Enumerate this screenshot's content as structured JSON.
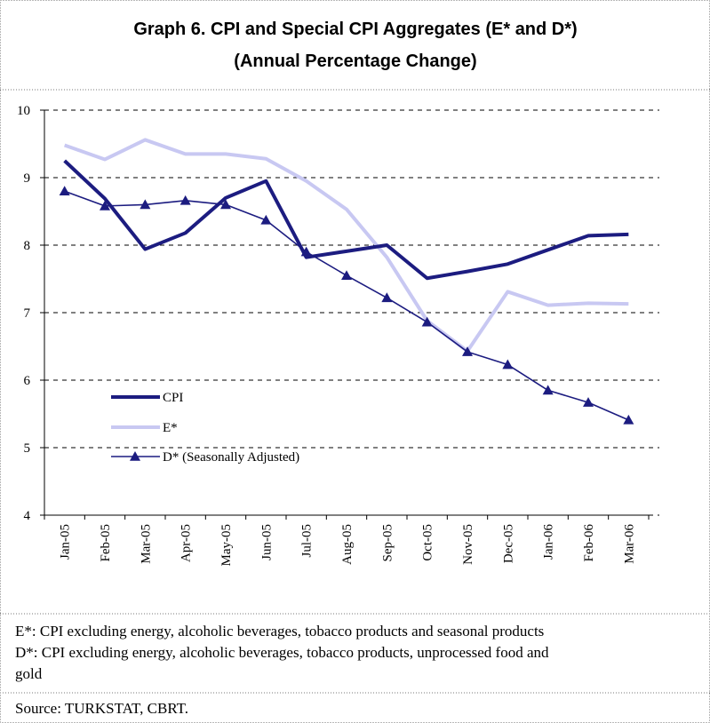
{
  "chart_data": {
    "type": "line",
    "title": "Graph 6. CPI and Special CPI Aggregates (E* and D*)",
    "subtitle": "(Annual Percentage Change)",
    "categories": [
      "Jan-05",
      "Feb-05",
      "Mar-05",
      "Apr-05",
      "May-05",
      "Jun-05",
      "Jul-05",
      "Aug-05",
      "Sep-05",
      "Oct-05",
      "Nov-05",
      "Dec-05",
      "Jan-06",
      "Feb-06",
      "Mar-06"
    ],
    "series": [
      {
        "name": "CPI",
        "color": "#1c1c80",
        "values": [
          9.25,
          8.69,
          7.94,
          8.18,
          8.7,
          8.95,
          7.82,
          7.91,
          8.0,
          7.51,
          7.61,
          7.72,
          7.93,
          8.14,
          8.16
        ]
      },
      {
        "name": "E*",
        "color": "#c8c8f2",
        "values": [
          9.48,
          9.27,
          9.56,
          9.35,
          9.35,
          9.28,
          8.95,
          8.53,
          7.82,
          6.88,
          6.43,
          7.31,
          7.11,
          7.14,
          7.13
        ]
      },
      {
        "name": "D* (Seasonally Adjusted)",
        "color": "#1c1c80",
        "values": [
          8.8,
          8.58,
          8.6,
          8.66,
          8.6,
          8.37,
          7.9,
          7.55,
          7.22,
          6.86,
          6.42,
          6.23,
          5.85,
          5.67,
          5.41
        ]
      }
    ],
    "ylim": [
      4,
      10
    ],
    "yticks": [
      4,
      5,
      6,
      7,
      8,
      9,
      10
    ],
    "grid": true,
    "notes": [
      "E*: CPI excluding energy, alcoholic beverages, tobacco products and seasonal products",
      "D*: CPI excluding energy, alcoholic beverages, tobacco products, unprocessed food and",
      "gold"
    ],
    "source": "Source: TURKSTAT, CBRT."
  }
}
